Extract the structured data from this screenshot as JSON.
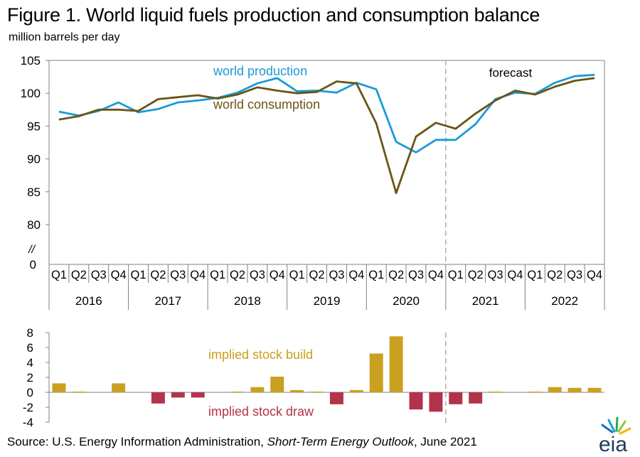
{
  "header": {
    "title": "Figure 1. World liquid fuels production and consumption balance",
    "units": "million barrels per day"
  },
  "footer": {
    "source_prefix": "Source: U.S. Energy Information Administration, ",
    "source_title": "Short-Term Energy Outlook",
    "source_suffix": ", June 2021"
  },
  "logo": {
    "text": "eia"
  },
  "colors": {
    "production": "#1a9bd7",
    "consumption": "#6b5416",
    "build": "#c9a020",
    "draw": "#b2334a",
    "axis": "#808080",
    "forecast_line": "#a0a0a0"
  },
  "chart_data": [
    {
      "type": "line",
      "ylim": [
        80,
        105
      ],
      "yticks": [
        "105",
        "100",
        "95",
        "90",
        "85",
        "80"
      ],
      "ytick_values": [
        105,
        100,
        95,
        90,
        85,
        80
      ],
      "y_break_label": "//",
      "y_zero_label": "0",
      "quarters": [
        "Q1",
        "Q2",
        "Q3",
        "Q4"
      ],
      "years": [
        "2016",
        "2017",
        "2018",
        "2019",
        "2020",
        "2021",
        "2022"
      ],
      "forecast_label": "forecast",
      "forecast_start_index": 20,
      "series": [
        {
          "name": "world production",
          "values": [
            97.2,
            96.6,
            97.3,
            98.6,
            97.1,
            97.6,
            98.6,
            98.9,
            99.3,
            100.1,
            101.5,
            102.3,
            100.3,
            100.4,
            100.1,
            101.6,
            100.6,
            92.6,
            91.0,
            92.9,
            92.9,
            95.3,
            99.1,
            100.1,
            99.9,
            101.6,
            102.6,
            102.8
          ]
        },
        {
          "name": "world consumption",
          "values": [
            96.0,
            96.5,
            97.5,
            97.5,
            97.3,
            99.1,
            99.4,
            99.7,
            99.2,
            99.8,
            100.9,
            100.4,
            100.0,
            100.2,
            101.8,
            101.5,
            95.4,
            84.8,
            93.4,
            95.5,
            94.6,
            96.9,
            98.9,
            100.4,
            99.8,
            101.0,
            101.9,
            102.3
          ]
        }
      ]
    },
    {
      "type": "bar",
      "ylim": [
        -4,
        8
      ],
      "yticks": [
        "8",
        "6",
        "4",
        "2",
        "0",
        "-2",
        "-4"
      ],
      "ytick_values": [
        8,
        6,
        4,
        2,
        0,
        -2,
        -4
      ],
      "build_label": "implied stock build",
      "draw_label": "implied stock draw",
      "values": [
        1.2,
        0.1,
        0.0,
        1.2,
        0.0,
        -1.5,
        -0.7,
        -0.7,
        0.0,
        0.1,
        0.7,
        2.1,
        0.3,
        0.1,
        -1.6,
        0.3,
        5.2,
        7.5,
        -2.3,
        -2.6,
        -1.6,
        -1.5,
        0.1,
        0.0,
        0.1,
        0.7,
        0.6,
        0.6
      ]
    }
  ]
}
